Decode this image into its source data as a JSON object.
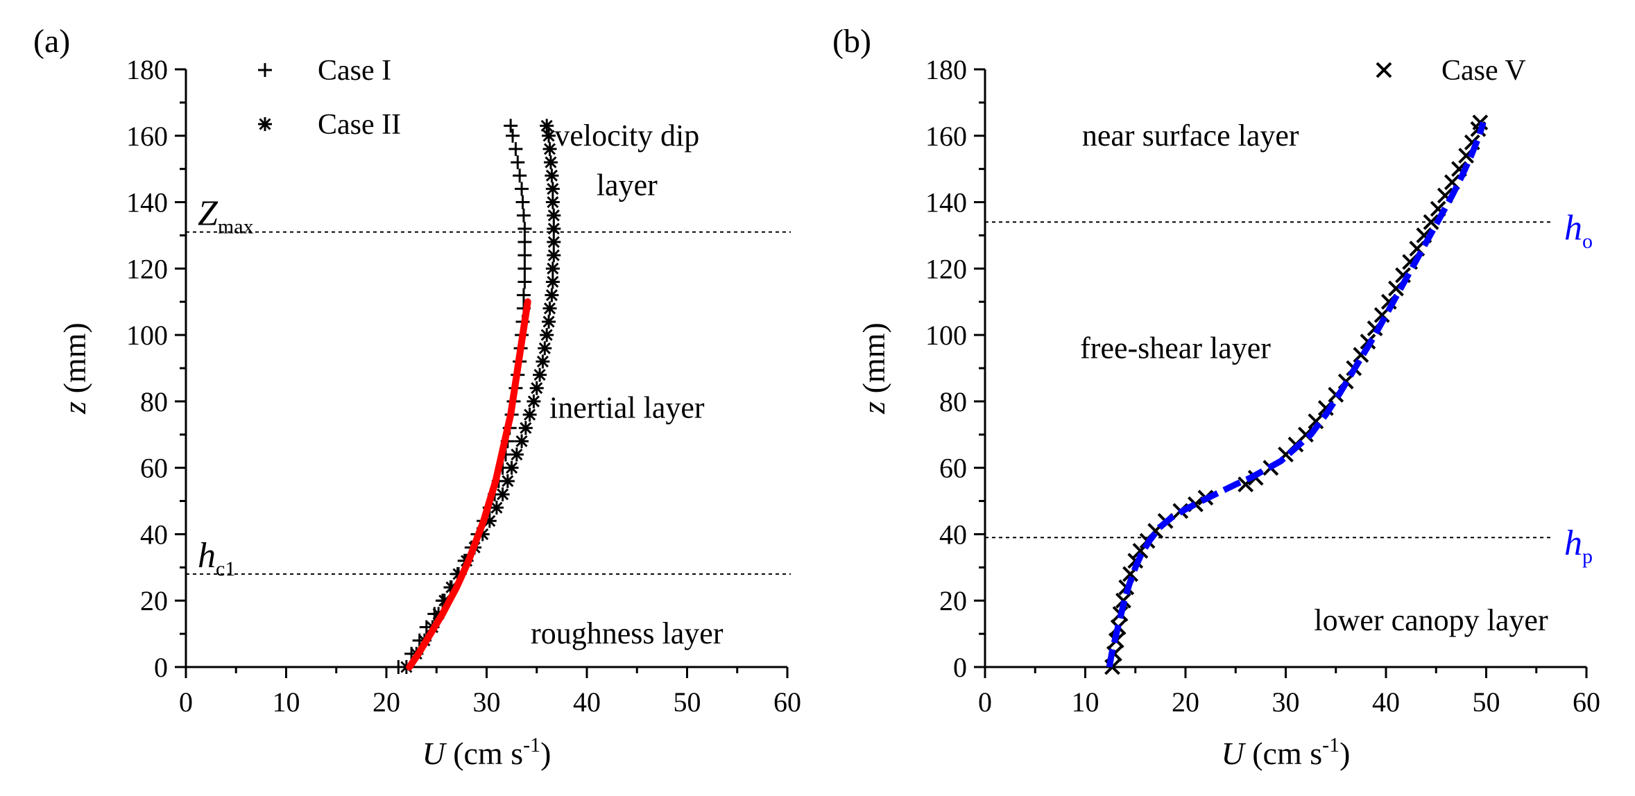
{
  "chart_data": [
    {
      "type": "scatter",
      "panel_label": "(a)",
      "x_title": {
        "var": "U",
        "units": " (cm s",
        "exp": "-1",
        "close": ")"
      },
      "y_title": {
        "var": "z",
        "units": " (mm)"
      },
      "xlim": [
        0,
        60
      ],
      "ylim": [
        0,
        180
      ],
      "xticks": [
        "0",
        "10",
        "20",
        "30",
        "40",
        "50",
        "60"
      ],
      "yticks": [
        "0",
        "20",
        "40",
        "60",
        "80",
        "100",
        "120",
        "140",
        "160",
        "180"
      ],
      "legend": {
        "position": "top-left",
        "entries": [
          "Case I",
          "Case II"
        ]
      },
      "series": [
        {
          "name": "Case I",
          "marker": "plus",
          "points": [
            [
              21.2,
              0
            ],
            [
              22.5,
              4
            ],
            [
              23.3,
              8
            ],
            [
              24.0,
              12
            ],
            [
              24.8,
              16
            ],
            [
              25.6,
              20
            ],
            [
              26.4,
              24
            ],
            [
              27.1,
              28
            ],
            [
              27.8,
              32
            ],
            [
              28.5,
              36
            ],
            [
              29.1,
              40
            ],
            [
              29.7,
              44
            ],
            [
              30.3,
              48
            ],
            [
              30.8,
              52
            ],
            [
              31.2,
              56
            ],
            [
              31.6,
              60
            ],
            [
              31.9,
              64
            ],
            [
              32.1,
              68
            ],
            [
              32.3,
              72
            ],
            [
              32.5,
              76
            ],
            [
              32.7,
              80
            ],
            [
              32.9,
              84
            ],
            [
              33.1,
              88
            ],
            [
              33.3,
              92
            ],
            [
              33.4,
              96
            ],
            [
              33.5,
              100
            ],
            [
              33.6,
              104
            ],
            [
              33.7,
              108
            ],
            [
              33.7,
              112
            ],
            [
              33.8,
              116
            ],
            [
              33.8,
              120
            ],
            [
              33.8,
              124
            ],
            [
              33.8,
              128
            ],
            [
              33.8,
              132
            ],
            [
              33.7,
              136
            ],
            [
              33.6,
              140
            ],
            [
              33.5,
              144
            ],
            [
              33.3,
              148
            ],
            [
              33.1,
              152
            ],
            [
              32.9,
              156
            ],
            [
              32.6,
              160
            ],
            [
              32.4,
              163
            ]
          ]
        },
        {
          "name": "Case II",
          "marker": "asterisk",
          "points": [
            [
              22.0,
              0
            ],
            [
              23.0,
              4
            ],
            [
              23.8,
              8
            ],
            [
              24.6,
              12
            ],
            [
              25.2,
              16
            ],
            [
              25.8,
              20
            ],
            [
              26.5,
              24
            ],
            [
              27.2,
              28
            ],
            [
              28.0,
              32
            ],
            [
              28.8,
              36
            ],
            [
              29.6,
              40
            ],
            [
              30.3,
              44
            ],
            [
              31.0,
              48
            ],
            [
              31.6,
              52
            ],
            [
              32.1,
              56
            ],
            [
              32.5,
              60
            ],
            [
              33.0,
              64
            ],
            [
              33.5,
              68
            ],
            [
              33.9,
              72
            ],
            [
              34.3,
              76
            ],
            [
              34.7,
              80
            ],
            [
              35.0,
              84
            ],
            [
              35.3,
              88
            ],
            [
              35.6,
              92
            ],
            [
              35.8,
              96
            ],
            [
              36.0,
              100
            ],
            [
              36.2,
              104
            ],
            [
              36.3,
              108
            ],
            [
              36.5,
              112
            ],
            [
              36.6,
              116
            ],
            [
              36.6,
              120
            ],
            [
              36.7,
              124
            ],
            [
              36.7,
              128
            ],
            [
              36.7,
              132
            ],
            [
              36.7,
              136
            ],
            [
              36.6,
              140
            ],
            [
              36.6,
              144
            ],
            [
              36.5,
              148
            ],
            [
              36.4,
              152
            ],
            [
              36.3,
              156
            ],
            [
              36.2,
              160
            ],
            [
              36.0,
              163
            ]
          ]
        },
        {
          "name": "fit",
          "style": "line",
          "color": "#ff0000",
          "points": [
            [
              22.3,
              0
            ],
            [
              23.2,
              4
            ],
            [
              24.0,
              8
            ],
            [
              24.8,
              12
            ],
            [
              25.6,
              16
            ],
            [
              26.3,
              20
            ],
            [
              27.0,
              24
            ],
            [
              27.6,
              28
            ],
            [
              28.2,
              32
            ],
            [
              28.7,
              36
            ],
            [
              29.2,
              40
            ],
            [
              29.7,
              44
            ],
            [
              30.1,
              48
            ],
            [
              30.5,
              52
            ],
            [
              30.9,
              56
            ],
            [
              31.2,
              60
            ],
            [
              31.5,
              64
            ],
            [
              31.8,
              68
            ],
            [
              32.1,
              72
            ],
            [
              32.4,
              76
            ],
            [
              32.6,
              80
            ],
            [
              32.8,
              84
            ],
            [
              33.0,
              88
            ],
            [
              33.2,
              92
            ],
            [
              33.4,
              96
            ],
            [
              33.6,
              100
            ],
            [
              33.8,
              104
            ],
            [
              34.0,
              108
            ],
            [
              34.1,
              110
            ]
          ]
        }
      ],
      "reference_lines": [
        {
          "label_main": "Z",
          "label_sub": "max",
          "y": 131,
          "color": "#000000"
        },
        {
          "label_main": "h",
          "label_sub": "c1",
          "y": 28,
          "color": "#000000"
        }
      ],
      "region_labels": [
        {
          "text": "velocity dip",
          "x": 44,
          "y": 160
        },
        {
          "text": "layer",
          "x": 44,
          "y": 145
        },
        {
          "text": "inertial layer",
          "x": 44,
          "y": 78
        },
        {
          "text": "roughness layer",
          "x": 44,
          "y": 10
        }
      ]
    },
    {
      "type": "scatter",
      "panel_label": "(b)",
      "x_title": {
        "var": "U",
        "units": " (cm s",
        "exp": "-1",
        "close": ")"
      },
      "y_title": {
        "var": "z",
        "units": " (mm)"
      },
      "xlim": [
        0,
        60
      ],
      "ylim": [
        0,
        180
      ],
      "xticks": [
        "0",
        "10",
        "20",
        "30",
        "40",
        "50",
        "60"
      ],
      "yticks": [
        "0",
        "20",
        "40",
        "60",
        "80",
        "100",
        "120",
        "140",
        "160",
        "180"
      ],
      "legend": {
        "position": "top-right",
        "entries": [
          "Case V"
        ]
      },
      "series": [
        {
          "name": "Case V",
          "marker": "x",
          "points": [
            [
              12.7,
              0
            ],
            [
              12.9,
              4
            ],
            [
              13.1,
              8
            ],
            [
              13.3,
              12
            ],
            [
              13.5,
              16
            ],
            [
              13.8,
              20
            ],
            [
              14.1,
              24
            ],
            [
              14.5,
              28
            ],
            [
              15.0,
              32
            ],
            [
              15.5,
              35
            ],
            [
              16.2,
              38
            ],
            [
              17.0,
              41
            ],
            [
              18.0,
              44
            ],
            [
              19.5,
              47
            ],
            [
              21.0,
              49
            ],
            [
              22.0,
              51
            ],
            [
              26.0,
              55
            ],
            [
              27.0,
              57
            ],
            [
              28.5,
              60
            ],
            [
              30.0,
              64
            ],
            [
              31.0,
              67
            ],
            [
              32.0,
              70
            ],
            [
              33.0,
              74
            ],
            [
              34.0,
              78
            ],
            [
              35.0,
              82
            ],
            [
              36.0,
              86
            ],
            [
              36.8,
              90
            ],
            [
              37.5,
              94
            ],
            [
              38.2,
              98
            ],
            [
              38.9,
              102
            ],
            [
              39.6,
              106
            ],
            [
              40.3,
              110
            ],
            [
              41.0,
              114
            ],
            [
              41.7,
              118
            ],
            [
              42.4,
              122
            ],
            [
              43.1,
              126
            ],
            [
              43.8,
              130
            ],
            [
              44.5,
              134
            ],
            [
              45.2,
              138
            ],
            [
              45.9,
              142
            ],
            [
              46.6,
              146
            ],
            [
              47.3,
              150
            ],
            [
              48.0,
              154
            ],
            [
              48.6,
              158
            ],
            [
              49.2,
              162
            ],
            [
              49.4,
              164
            ]
          ]
        },
        {
          "name": "fit",
          "style": "dashed-line",
          "color": "#0000ff",
          "points": [
            [
              12.4,
              0
            ],
            [
              12.7,
              5
            ],
            [
              13.1,
              10
            ],
            [
              13.5,
              15
            ],
            [
              13.9,
              20
            ],
            [
              14.4,
              25
            ],
            [
              15.0,
              30
            ],
            [
              15.6,
              34
            ],
            [
              16.4,
              38
            ],
            [
              17.4,
              42
            ],
            [
              18.6,
              45
            ],
            [
              20.0,
              47.5
            ],
            [
              21.6,
              50
            ],
            [
              23.3,
              52.5
            ],
            [
              25.0,
              55
            ],
            [
              26.5,
              57
            ],
            [
              28.0,
              59.5
            ],
            [
              29.5,
              62
            ],
            [
              31.0,
              66
            ],
            [
              32.5,
              70
            ],
            [
              34.0,
              76
            ],
            [
              35.3,
              82
            ],
            [
              36.5,
              88
            ],
            [
              37.7,
              94
            ],
            [
              38.9,
              100
            ],
            [
              40.0,
              106
            ],
            [
              41.1,
              112
            ],
            [
              42.2,
              118
            ],
            [
              43.3,
              124
            ],
            [
              44.4,
              130
            ],
            [
              45.5,
              136
            ],
            [
              46.6,
              142
            ],
            [
              47.6,
              148
            ],
            [
              48.5,
              154
            ],
            [
              49.3,
              160
            ],
            [
              49.7,
              164
            ]
          ]
        }
      ],
      "reference_lines": [
        {
          "label_main": "h",
          "label_sub": "o",
          "y": 134,
          "color": "#0000ff"
        },
        {
          "label_main": "h",
          "label_sub": "p",
          "y": 39,
          "color": "#0000ff"
        }
      ],
      "region_labels": [
        {
          "text": "near surface layer",
          "x": 20.5,
          "y": 160
        },
        {
          "text": "free-shear layer",
          "x": 19,
          "y": 96
        },
        {
          "text": "lower canopy layer",
          "x": 44.5,
          "y": 14
        }
      ]
    }
  ]
}
